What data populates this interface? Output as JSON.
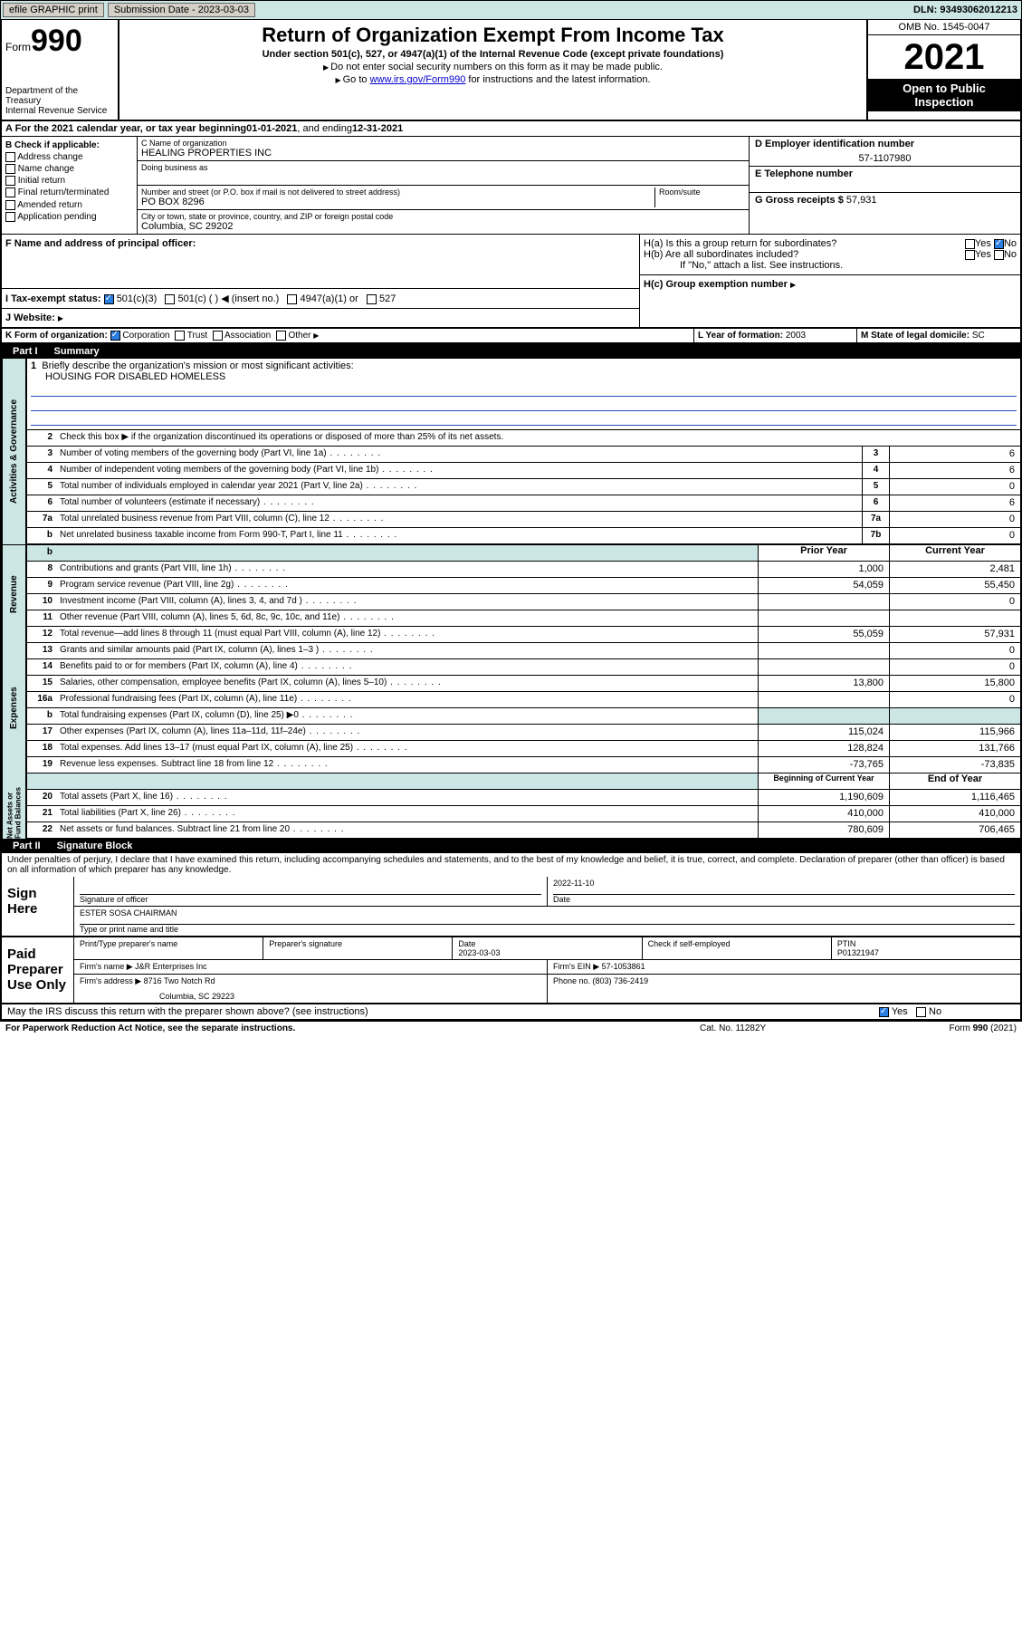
{
  "topbar": {
    "efile": "efile GRAPHIC print",
    "submission": "Submission Date - 2023-03-03",
    "dln": "DLN: 93493062012213"
  },
  "header": {
    "form_prefix": "Form",
    "form_number": "990",
    "dept": "Department of the Treasury",
    "irs": "Internal Revenue Service",
    "title": "Return of Organization Exempt From Income Tax",
    "subtitle": "Under section 501(c), 527, or 4947(a)(1) of the Internal Revenue Code (except private foundations)",
    "line1": "Do not enter social security numbers on this form as it may be made public.",
    "line2_pre": "Go to ",
    "line2_link": "www.irs.gov/Form990",
    "line2_post": " for instructions and the latest information.",
    "omb": "OMB No. 1545-0047",
    "year": "2021",
    "open1": "Open to Public",
    "open2": "Inspection"
  },
  "period": {
    "label_a": "A For the 2021 calendar year, or tax year beginning ",
    "begin": "01-01-2021",
    "mid": " , and ending ",
    "end": "12-31-2021"
  },
  "section_b": {
    "label": "B Check if applicable:",
    "items": [
      "Address change",
      "Name change",
      "Initial return",
      "Final return/terminated",
      "Amended return",
      "Application pending"
    ]
  },
  "section_c": {
    "name_label": "C Name of organization",
    "name": "HEALING PROPERTIES INC",
    "dba_label": "Doing business as",
    "addr_label": "Number and street (or P.O. box if mail is not delivered to street address)",
    "room_label": "Room/suite",
    "addr": "PO BOX 8296",
    "city_label": "City or town, state or province, country, and ZIP or foreign postal code",
    "city": "Columbia, SC  29202"
  },
  "section_d": {
    "label": "D Employer identification number",
    "value": "57-1107980"
  },
  "section_e": {
    "label": "E Telephone number"
  },
  "section_f": {
    "label": "F Name and address of principal officer:"
  },
  "section_g": {
    "label": "G Gross receipts $",
    "value": "57,931"
  },
  "section_h": {
    "ha": "H(a)  Is this a group return for subordinates?",
    "hb": "H(b)  Are all subordinates included?",
    "hnote": "If \"No,\" attach a list. See instructions.",
    "hc": "H(c)  Group exemption number",
    "yes": "Yes",
    "no": "No"
  },
  "section_i": {
    "label": "I   Tax-exempt status:",
    "opts": [
      "501(c)(3)",
      "501(c) (  )  ◀ (insert no.)",
      "4947(a)(1) or",
      "527"
    ]
  },
  "section_j": {
    "label": "J   Website:"
  },
  "section_k": {
    "label": "K Form of organization:",
    "opts": [
      "Corporation",
      "Trust",
      "Association",
      "Other"
    ]
  },
  "section_l": {
    "label": "L Year of formation: ",
    "value": "2003"
  },
  "section_m": {
    "label": "M State of legal domicile: ",
    "value": "SC"
  },
  "part1": {
    "name": "Part I",
    "title": "Summary"
  },
  "summary": {
    "l1": "Briefly describe the organization's mission or most significant activities:",
    "l1v": "HOUSING FOR DISABLED HOMELESS",
    "l2": "Check this box ▶        if the organization discontinued its operations or disposed of more than 25% of its net assets.",
    "lines": [
      {
        "n": "3",
        "d": "Number of voting members of the governing body (Part VI, line 1a)",
        "box": "3",
        "v": "6"
      },
      {
        "n": "4",
        "d": "Number of independent voting members of the governing body (Part VI, line 1b)",
        "box": "4",
        "v": "6"
      },
      {
        "n": "5",
        "d": "Total number of individuals employed in calendar year 2021 (Part V, line 2a)",
        "box": "5",
        "v": "0"
      },
      {
        "n": "6",
        "d": "Total number of volunteers (estimate if necessary)",
        "box": "6",
        "v": "6"
      },
      {
        "n": "7a",
        "d": "Total unrelated business revenue from Part VIII, column (C), line 12",
        "box": "7a",
        "v": "0"
      },
      {
        "n": "b",
        "d": "Net unrelated business taxable income from Form 990-T, Part I, line 11",
        "box": "7b",
        "v": "0"
      }
    ],
    "hd_prior": "Prior Year",
    "hd_current": "Current Year",
    "revenue": [
      {
        "n": "8",
        "d": "Contributions and grants (Part VIII, line 1h)",
        "p": "1,000",
        "c": "2,481"
      },
      {
        "n": "9",
        "d": "Program service revenue (Part VIII, line 2g)",
        "p": "54,059",
        "c": "55,450"
      },
      {
        "n": "10",
        "d": "Investment income (Part VIII, column (A), lines 3, 4, and 7d )",
        "p": "",
        "c": "0"
      },
      {
        "n": "11",
        "d": "Other revenue (Part VIII, column (A), lines 5, 6d, 8c, 9c, 10c, and 11e)",
        "p": "",
        "c": ""
      },
      {
        "n": "12",
        "d": "Total revenue—add lines 8 through 11 (must equal Part VIII, column (A), line 12)",
        "p": "55,059",
        "c": "57,931"
      }
    ],
    "expenses": [
      {
        "n": "13",
        "d": "Grants and similar amounts paid (Part IX, column (A), lines 1–3 )",
        "p": "",
        "c": "0"
      },
      {
        "n": "14",
        "d": "Benefits paid to or for members (Part IX, column (A), line 4)",
        "p": "",
        "c": "0"
      },
      {
        "n": "15",
        "d": "Salaries, other compensation, employee benefits (Part IX, column (A), lines 5–10)",
        "p": "13,800",
        "c": "15,800"
      },
      {
        "n": "16a",
        "d": "Professional fundraising fees (Part IX, column (A), line 11e)",
        "p": "",
        "c": "0"
      },
      {
        "n": "b",
        "d": "Total fundraising expenses (Part IX, column (D), line 25) ▶0",
        "p": "shade",
        "c": "shade"
      },
      {
        "n": "17",
        "d": "Other expenses (Part IX, column (A), lines 11a–11d, 11f–24e)",
        "p": "115,024",
        "c": "115,966"
      },
      {
        "n": "18",
        "d": "Total expenses. Add lines 13–17 (must equal Part IX, column (A), line 25)",
        "p": "128,824",
        "c": "131,766"
      },
      {
        "n": "19",
        "d": "Revenue less expenses. Subtract line 18 from line 12",
        "p": "-73,765",
        "c": "-73,835"
      }
    ],
    "hd_begin": "Beginning of Current Year",
    "hd_end": "End of Year",
    "netassets": [
      {
        "n": "20",
        "d": "Total assets (Part X, line 16)",
        "p": "1,190,609",
        "c": "1,116,465"
      },
      {
        "n": "21",
        "d": "Total liabilities (Part X, line 26)",
        "p": "410,000",
        "c": "410,000"
      },
      {
        "n": "22",
        "d": "Net assets or fund balances. Subtract line 21 from line 20",
        "p": "780,609",
        "c": "706,465"
      }
    ],
    "side_gov": "Activities & Governance",
    "side_rev": "Revenue",
    "side_exp": "Expenses",
    "side_net": "Net Assets or Fund Balances"
  },
  "part2": {
    "name": "Part II",
    "title": "Signature Block"
  },
  "penalties": "Under penalties of perjury, I declare that I have examined this return, including accompanying schedules and statements, and to the best of my knowledge and belief, it is true, correct, and complete. Declaration of preparer (other than officer) is based on all information of which preparer has any knowledge.",
  "sign": {
    "here": "Sign Here",
    "sig_officer": "Signature of officer",
    "date": "Date",
    "date_val": "2022-11-10",
    "name": "ESTER SOSA CHAIRMAN",
    "name_label": "Type or print name and title"
  },
  "paid": {
    "label": "Paid Preparer Use Only",
    "col1": "Print/Type preparer's name",
    "col2": "Preparer's signature",
    "col3": "Date",
    "col3v": "2023-03-03",
    "col4": "Check        if self-employed",
    "col5": "PTIN",
    "col5v": "P01321947",
    "firm_name": "Firm's name    ▶ J&R Enterprises Inc",
    "firm_ein": "Firm's EIN ▶ 57-1053861",
    "firm_addr": "Firm's address ▶ 8716 Two Notch Rd",
    "firm_city": "Columbia, SC  29223",
    "phone": "Phone no. (803) 736-2419"
  },
  "discuss": {
    "q": "May the IRS discuss this return with the preparer shown above? (see instructions)",
    "yes": "Yes",
    "no": "No"
  },
  "footer": {
    "l": "For Paperwork Reduction Act Notice, see the separate instructions.",
    "c": "Cat. No. 11282Y",
    "r": "Form 990 (2021)"
  }
}
